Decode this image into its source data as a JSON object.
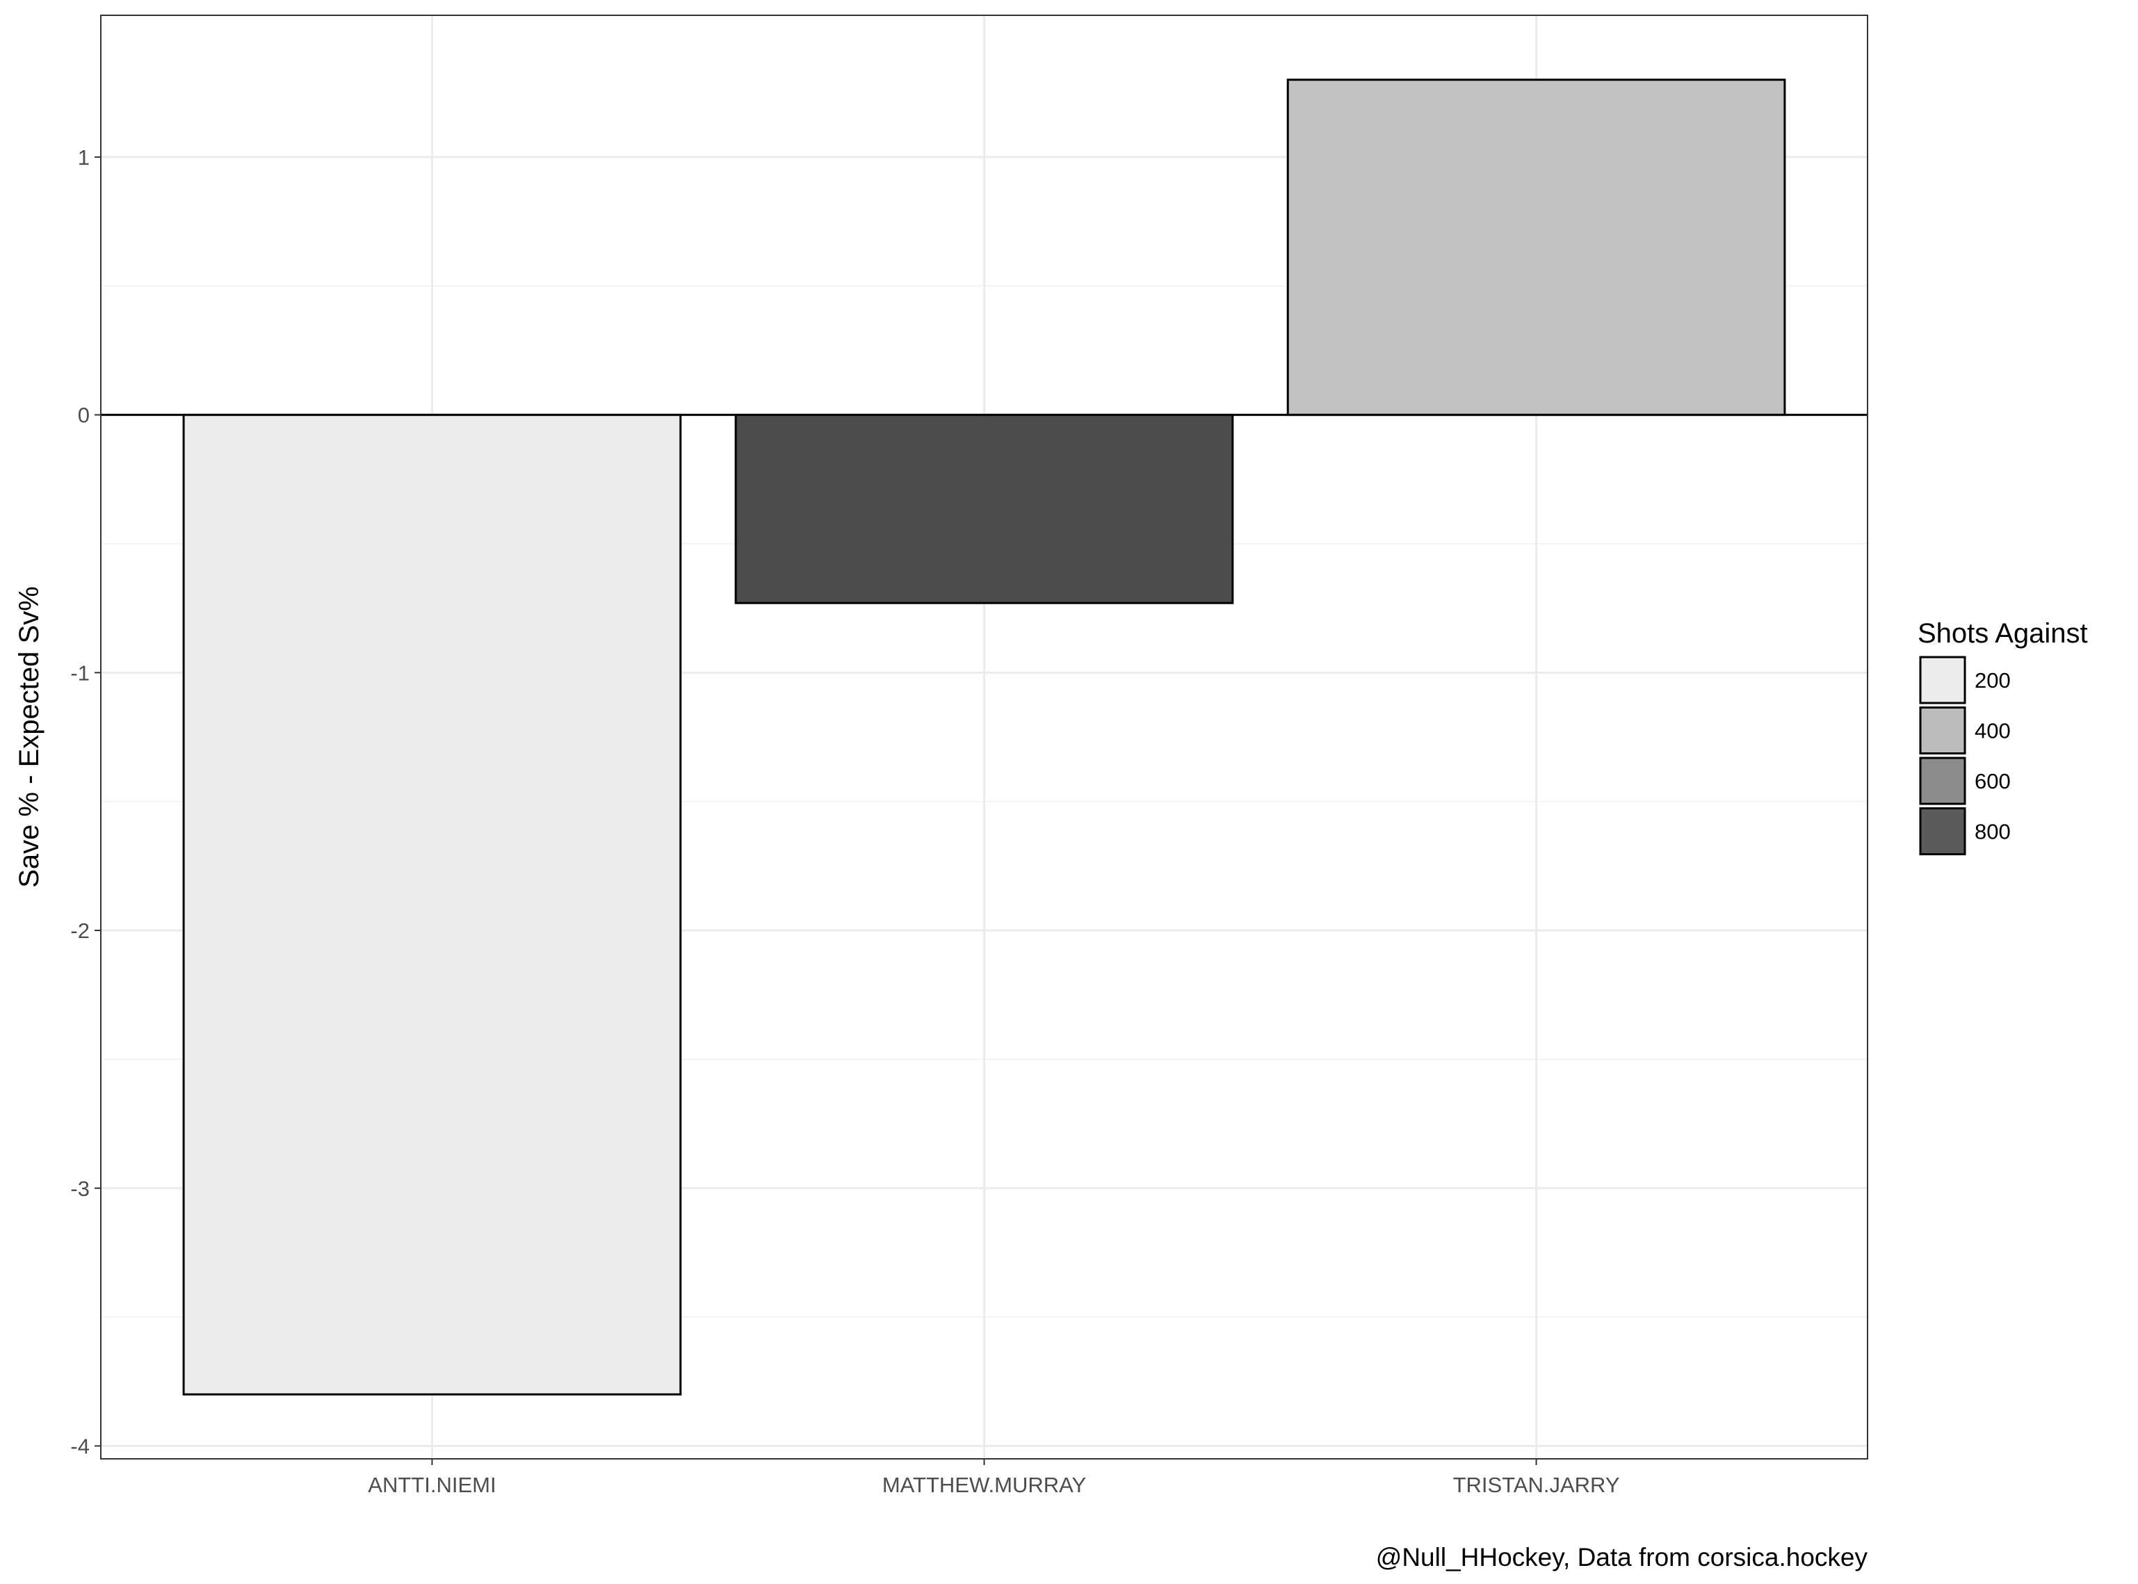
{
  "chart_data": {
    "type": "bar",
    "categories": [
      "ANTTI.NIEMI",
      "MATTHEW.MURRAY",
      "TRISTAN.JARRY"
    ],
    "values": [
      -3.8,
      -0.73,
      1.3
    ],
    "fill_values": [
      200,
      860,
      380
    ],
    "title": "",
    "xlabel": "",
    "ylabel": "Save % - Expected Sv%",
    "ylim": [
      -4.05,
      1.55
    ],
    "yticks": [
      -4,
      -3,
      -2,
      -1,
      0,
      1
    ],
    "grid": true,
    "legend": {
      "title": "Shots Against",
      "position": "right",
      "entries": [
        {
          "label": "200",
          "value": 200
        },
        {
          "label": "400",
          "value": 400
        },
        {
          "label": "600",
          "value": 600
        },
        {
          "label": "800",
          "value": 800
        }
      ]
    },
    "caption": "@Null_HHockey, Data from corsica.hockey",
    "colors": {
      "low": "#ececec",
      "high": "#4d4d4d",
      "outline": "#000000",
      "grid_major": "#ebebeb",
      "grid_minor": "#f3f3f3"
    }
  }
}
